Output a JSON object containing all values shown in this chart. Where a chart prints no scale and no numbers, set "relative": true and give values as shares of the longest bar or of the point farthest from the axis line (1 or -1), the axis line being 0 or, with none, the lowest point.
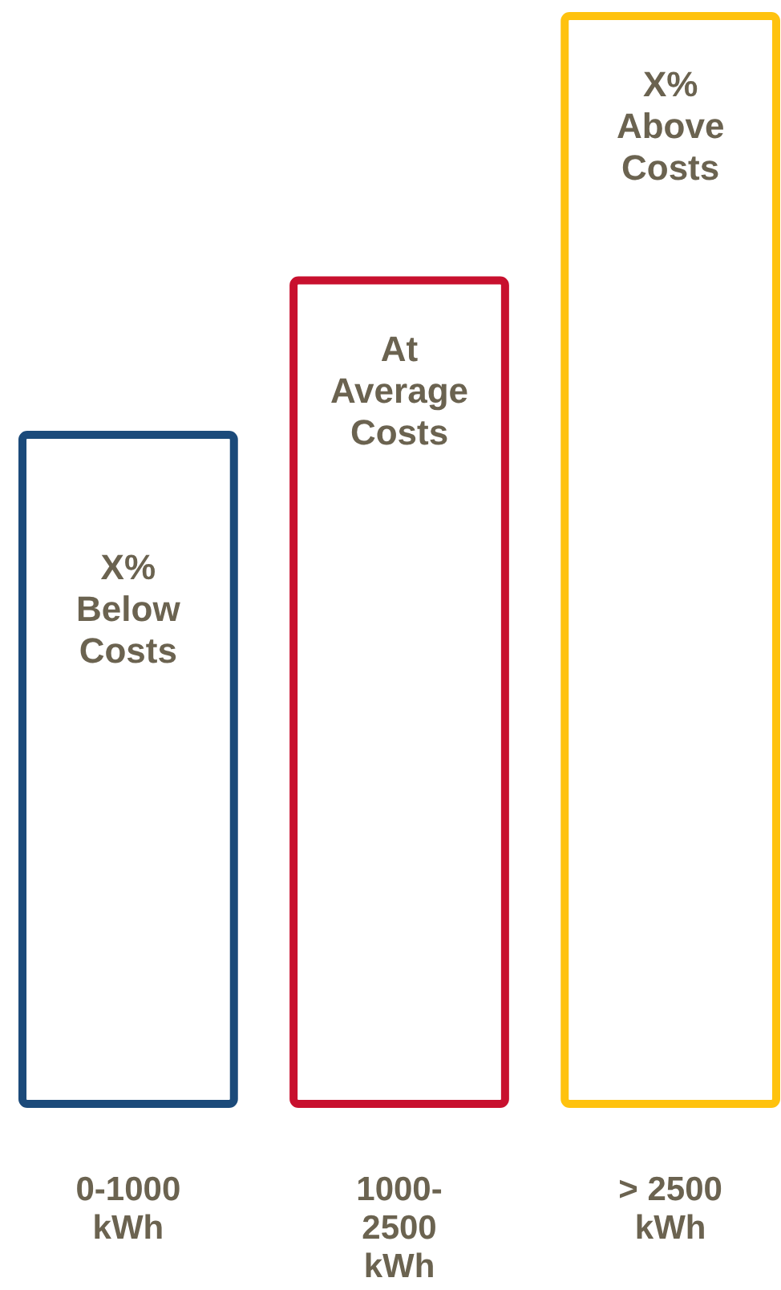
{
  "chart_data": {
    "type": "bar",
    "relative": true,
    "categories": [
      "0-1000 kWh",
      "1000-2500 kWh",
      "> 2500 kWh"
    ],
    "values": [
      0.615,
      0.757,
      1
    ],
    "colors": [
      "#1b4a7a",
      "#c8102e",
      "#ffc20e"
    ],
    "annotations": [
      "X% Below Costs",
      "At Average Costs",
      "X% Above Costs"
    ]
  }
}
